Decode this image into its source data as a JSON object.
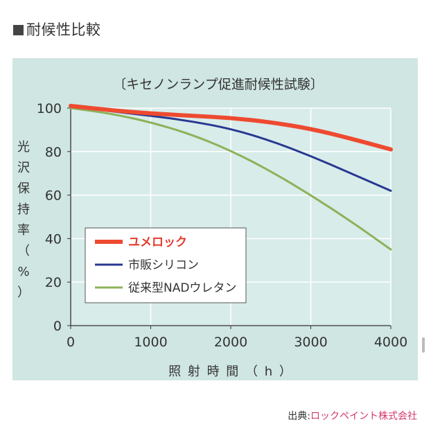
{
  "heading": "耐候性比較",
  "source": {
    "label": "出典:",
    "link": "ロックペイント株式会社"
  },
  "chart_data": {
    "type": "line",
    "title": "〔キセノンランプ促進耐候性試験〕",
    "xlabel": "照 射 時 間 （ h ）",
    "ylabel": [
      "光",
      "沢",
      "保",
      "持",
      "率",
      "（",
      "%",
      "）"
    ],
    "xlim": [
      0,
      4000
    ],
    "ylim": [
      0,
      100
    ],
    "x_ticks": [
      0,
      1000,
      2000,
      3000,
      4000
    ],
    "y_ticks": [
      0,
      20,
      40,
      60,
      80,
      100
    ],
    "grid": true,
    "legend_position": "bottom-left",
    "x": [
      0,
      500,
      1000,
      1500,
      2000,
      2500,
      3000,
      3500,
      4000
    ],
    "series": [
      {
        "name": "ユメロック",
        "color": "#ee4a30",
        "width": 6,
        "values": [
          101,
          99,
          97.5,
          96.5,
          95.5,
          93.5,
          90.5,
          86,
          81
        ]
      },
      {
        "name": "市販シリコン",
        "color": "#283891",
        "width": 3,
        "values": [
          101,
          98.5,
          96.5,
          94,
          90.5,
          85,
          78,
          70,
          62
        ]
      },
      {
        "name": "従来型NADウレタン",
        "color": "#8cb25a",
        "width": 3,
        "values": [
          100,
          97.5,
          93.5,
          88,
          80.5,
          71,
          60,
          48,
          35
        ]
      }
    ]
  }
}
